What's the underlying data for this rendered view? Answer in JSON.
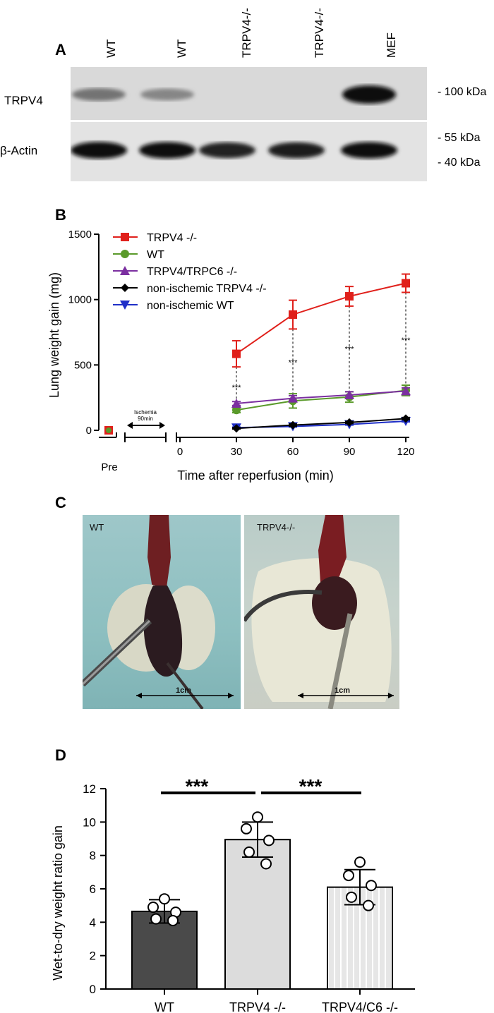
{
  "panels": {
    "a": "A",
    "b": "B",
    "c": "C",
    "d": "D"
  },
  "panel_a": {
    "lanes": [
      "WT",
      "WT",
      "TRPV4-/-",
      "TRPV4-/-",
      "MEF"
    ],
    "rows": [
      "TRPV4",
      "β-Actin"
    ],
    "markers": [
      "- 100 kDa",
      "- 55 kDa",
      "- 40 kDa"
    ],
    "bands": {
      "trpv4_intensity": [
        0.45,
        0.35,
        0.0,
        0.0,
        1.0
      ],
      "actin_intensity": [
        1.0,
        0.95,
        0.8,
        0.85,
        0.95
      ]
    }
  },
  "panel_c": {
    "photos": [
      {
        "label": "WT",
        "scale": "1cm"
      },
      {
        "label": "TRPV4-/-",
        "scale": "1cm"
      }
    ]
  },
  "chart_data": [
    {
      "type": "line",
      "ylabel": "Lung weight gain (mg)",
      "xlabel": "Time after reperfusion (min)",
      "pre_label": "Pre",
      "ischemia_label": [
        "Ischemia",
        "90min"
      ],
      "x_ticks": [
        "0",
        "30",
        "60",
        "90",
        "120"
      ],
      "ylim": [
        0,
        1500
      ],
      "y_ticks": [
        0,
        500,
        1000,
        1500
      ],
      "legend_position": "top-left",
      "x": [
        30,
        60,
        90,
        120
      ],
      "pre_value": 0,
      "series": [
        {
          "name": "TRPV4 -/-",
          "color": "#e0201b",
          "marker": "square",
          "values": [
            585,
            885,
            1025,
            1125
          ],
          "err": [
            100,
            110,
            75,
            70
          ]
        },
        {
          "name": "WT",
          "color": "#5a9a2a",
          "marker": "circle",
          "values": [
            155,
            225,
            255,
            305
          ],
          "err": [
            20,
            55,
            40,
            40
          ]
        },
        {
          "name": "TRPV4/TRPC6 -/-",
          "color": "#7b2fa0",
          "marker": "triangle-up",
          "values": [
            205,
            245,
            270,
            300
          ],
          "err": [
            15,
            20,
            25,
            25
          ]
        },
        {
          "name": "non-ischemic TRPV4 -/-",
          "color": "#000000",
          "marker": "diamond",
          "values": [
            15,
            40,
            60,
            90
          ],
          "err": [
            5,
            8,
            8,
            8
          ]
        },
        {
          "name": "non-ischemic WT",
          "color": "#1f2fc8",
          "marker": "triangle-down",
          "values": [
            20,
            30,
            45,
            70
          ],
          "err": [
            5,
            5,
            5,
            5
          ]
        }
      ],
      "significance": [
        "***",
        "***",
        "***",
        "***"
      ]
    },
    {
      "type": "bar",
      "ylabel": "Wet-to-dry weight ratio gain",
      "categories": [
        "WT",
        "TRPV4 -/-",
        "TRPV4/C6 -/-"
      ],
      "values": [
        4.65,
        8.95,
        6.1
      ],
      "sd": [
        0.7,
        1.05,
        1.05
      ],
      "points": [
        [
          5.4,
          4.9,
          4.6,
          4.2,
          4.1
        ],
        [
          10.3,
          9.6,
          8.9,
          8.2,
          7.5
        ],
        [
          7.6,
          6.8,
          6.2,
          5.5,
          5.0
        ]
      ],
      "bar_colors": [
        "#4a4a4a",
        "#dcdcdc",
        "#e2e2e2"
      ],
      "ylim": [
        0,
        12
      ],
      "y_ticks": [
        0,
        2,
        4,
        6,
        8,
        10,
        12
      ],
      "significance": [
        "***",
        "***"
      ]
    }
  ]
}
